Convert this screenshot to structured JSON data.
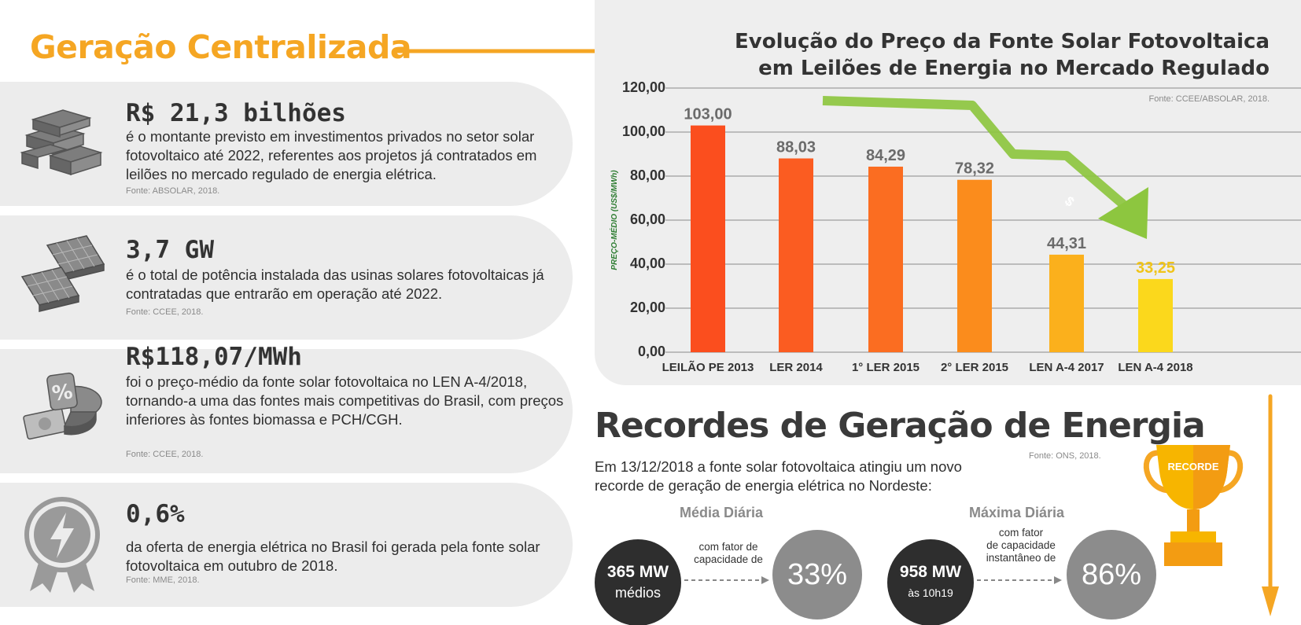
{
  "header": {
    "title": "Geração Centralizada"
  },
  "cards": [
    {
      "headline": "R$ 21,3 bilhões",
      "description": "é o montante previsto em investimentos privados no setor solar fotovoltaico até 2022, referentes aos projetos já contratados em leilões no mercado regulado de energia elétrica.",
      "source": "Fonte: ABSOLAR, 2018.",
      "icon": "money-stack-icon"
    },
    {
      "headline": "3,7 GW",
      "description": "é o total de potência instalada das usinas solares fotovoltaicas já contratadas que entrarão em operação até 2022.",
      "source": "Fonte: CCEE, 2018.",
      "icon": "solar-panels-icon"
    },
    {
      "headline": "R$118,07/MWh",
      "description": "foi o preço-médio da fonte solar fotovoltaica no LEN A-4/2018, tornando-a uma das fontes mais competitivas do Brasil, com preços inferiores às fontes biomassa e PCH/CGH.",
      "source": "Fonte: CCEE, 2018.",
      "icon": "percent-pie-icon"
    },
    {
      "headline": "0,6%",
      "description": "da oferta de energia elétrica no Brasil foi gerada pela fonte solar fotovoltaica em outubro de 2018.",
      "source": "Fonte: MME, 2018.",
      "icon": "lightning-badge-icon"
    }
  ],
  "chart_panel": {
    "title_line1": "Evolução do Preço da Fonte Solar Fotovoltaica",
    "title_line2": "em Leilões de Energia no Mercado Regulado",
    "source": "Fonte: CCEE/ABSOLAR, 2018."
  },
  "chart_data": {
    "type": "bar",
    "title": "Evolução do Preço da Fonte Solar Fotovoltaica em Leilões de Energia no Mercado Regulado",
    "xlabel": "",
    "ylabel": "PREÇO-MÉDIO (US$/MWh)",
    "ylim": [
      0,
      120
    ],
    "yticks": [
      "0,00",
      "20,00",
      "40,00",
      "60,00",
      "80,00",
      "100,00",
      "120,00"
    ],
    "categories": [
      "LEILÃO PE 2013",
      "LER 2014",
      "1° LER 2015",
      "2° LER 2015",
      "LEN A-4 2017",
      "LEN A-4 2018"
    ],
    "values": [
      103.0,
      88.03,
      84.29,
      78.32,
      44.31,
      33.25
    ],
    "value_labels": [
      "103,00",
      "88,03",
      "84,29",
      "78,32",
      "44,31",
      "33,25"
    ],
    "bar_colors": [
      "#fb4e1e",
      "#fb5c21",
      "#fb6d21",
      "#fb8c1c",
      "#fbb01c",
      "#fbd81c"
    ],
    "label_colors": [
      "#6b6b6b",
      "#6b6b6b",
      "#6b6b6b",
      "#6b6b6b",
      "#6b6b6b",
      "#f0c419"
    ],
    "grid": true,
    "trend_arrow_symbol": "$",
    "trend_arrow_color": "#8dc63f"
  },
  "records": {
    "title": "Recordes de Geração de Energia",
    "source": "Fonte: ONS, 2018.",
    "description": "Em 13/12/2018 a fonte solar fotovoltaica atingiu um novo recorde de geração de energia elétrica no Nordeste:",
    "daily_avg": {
      "heading": "Média Diária",
      "power": "365 MW",
      "power_sub": "médios",
      "cap_line1": "com fator de",
      "cap_line2": "capacidade de",
      "factor": "33%"
    },
    "daily_max": {
      "heading": "Máxima Diária",
      "power": "958 MW",
      "power_sub": "às 10h19",
      "cap_line1": "com fator",
      "cap_line2": "de capacidade",
      "cap_line3": "instantâneo de",
      "factor": "86%"
    },
    "trophy_label": "RECORDE"
  },
  "colors": {
    "accent_orange": "#f5a623",
    "panel_grey": "#ececec",
    "trend_green": "#8dc63f",
    "axis_label_green": "#2e7d32"
  }
}
